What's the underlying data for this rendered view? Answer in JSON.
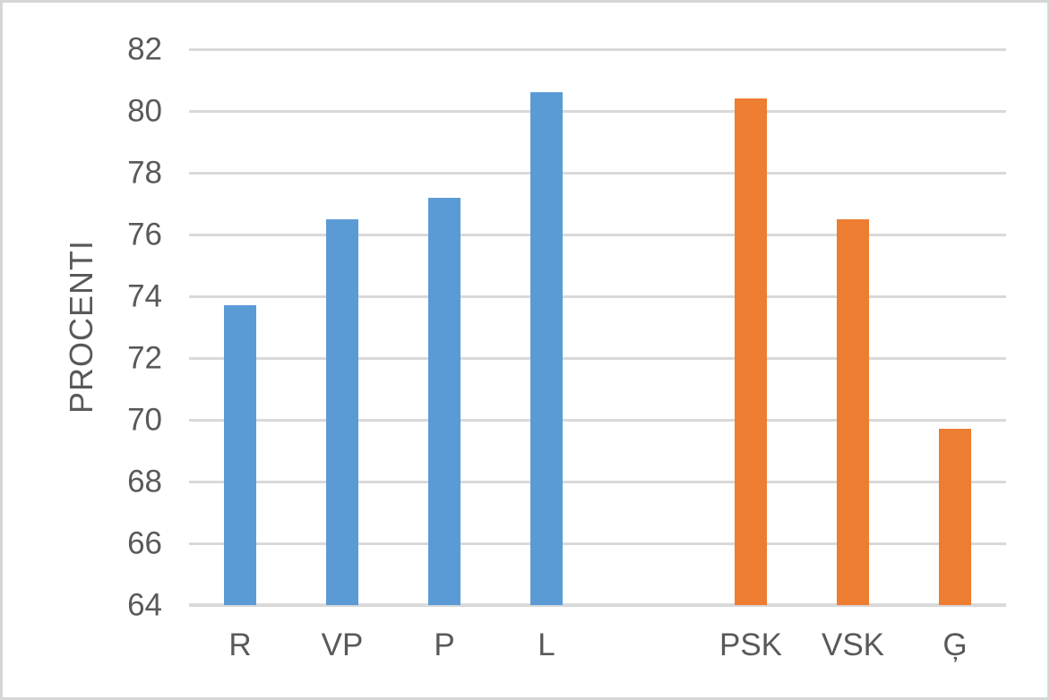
{
  "chart_data": {
    "type": "bar",
    "title": "",
    "xlabel": "",
    "ylabel": "PROCENTI",
    "ylim": [
      64,
      82
    ],
    "yticks": [
      64,
      66,
      68,
      70,
      72,
      74,
      76,
      78,
      80,
      82
    ],
    "grid": true,
    "legend_position": "none",
    "categories": [
      "R",
      "VP",
      "P",
      "L",
      "",
      "PSK",
      "VSK",
      "Ģ"
    ],
    "values": [
      73.7,
      76.5,
      77.2,
      80.6,
      null,
      80.4,
      76.5,
      69.7
    ],
    "bar_color_keys": [
      "blue",
      "blue",
      "blue",
      "blue",
      null,
      "orange",
      "orange",
      "orange"
    ],
    "colors": {
      "blue": "#5B9BD5",
      "orange": "#ED7D31"
    },
    "gridline_color": "#D9D9D9",
    "axis_line_color": "#D9D9D9",
    "tick_label_color": "#595959",
    "axis_title_color": "#595959",
    "page_border_color": "#D6D6D6",
    "background_color": "#FFFFFF"
  }
}
